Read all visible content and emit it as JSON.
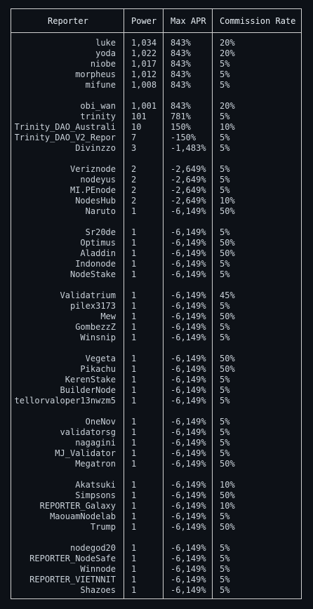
{
  "table": {
    "headers": {
      "reporter": "Reporter",
      "power": "Power",
      "max_apr": "Max APR",
      "commission": "Commission Rate"
    },
    "groups": [
      [
        {
          "reporter": "luke",
          "power": "1,034",
          "apr": "843%",
          "commission": "20%"
        },
        {
          "reporter": "yoda",
          "power": "1,022",
          "apr": "843%",
          "commission": "20%"
        },
        {
          "reporter": "niobe",
          "power": "1,017",
          "apr": "843%",
          "commission": "5%"
        },
        {
          "reporter": "morpheus",
          "power": "1,012",
          "apr": "843%",
          "commission": "5%"
        },
        {
          "reporter": "mifune",
          "power": "1,008",
          "apr": "843%",
          "commission": "5%"
        }
      ],
      [
        {
          "reporter": "obi_wan",
          "power": "1,001",
          "apr": "843%",
          "commission": "20%"
        },
        {
          "reporter": "trinity",
          "power": "101",
          "apr": "781%",
          "commission": "5%"
        },
        {
          "reporter": "Trinity_DAO_Australi",
          "power": "10",
          "apr": "150%",
          "commission": "10%"
        },
        {
          "reporter": "Trinity_DAO_V2_Repor",
          "power": "7",
          "apr": "-150%",
          "commission": "5%"
        },
        {
          "reporter": "Divinzzo",
          "power": "3",
          "apr": "-1,483%",
          "commission": "5%"
        }
      ],
      [
        {
          "reporter": "Veriznode",
          "power": "2",
          "apr": "-2,649%",
          "commission": "5%"
        },
        {
          "reporter": "nodeyus",
          "power": "2",
          "apr": "-2,649%",
          "commission": "5%"
        },
        {
          "reporter": "MI.PEnode",
          "power": "2",
          "apr": "-2,649%",
          "commission": "5%"
        },
        {
          "reporter": "NodesHub",
          "power": "2",
          "apr": "-2,649%",
          "commission": "10%"
        },
        {
          "reporter": "Naruto",
          "power": "1",
          "apr": "-6,149%",
          "commission": "50%"
        }
      ],
      [
        {
          "reporter": "Sr20de",
          "power": "1",
          "apr": "-6,149%",
          "commission": "5%"
        },
        {
          "reporter": "Optimus",
          "power": "1",
          "apr": "-6,149%",
          "commission": "50%"
        },
        {
          "reporter": "Aladdin",
          "power": "1",
          "apr": "-6,149%",
          "commission": "50%"
        },
        {
          "reporter": "Indonode",
          "power": "1",
          "apr": "-6,149%",
          "commission": "5%"
        },
        {
          "reporter": "NodeStake",
          "power": "1",
          "apr": "-6,149%",
          "commission": "5%"
        }
      ],
      [
        {
          "reporter": "Validatrium",
          "power": "1",
          "apr": "-6,149%",
          "commission": "45%"
        },
        {
          "reporter": "pilex3173",
          "power": "1",
          "apr": "-6,149%",
          "commission": "5%"
        },
        {
          "reporter": "Mew",
          "power": "1",
          "apr": "-6,149%",
          "commission": "50%"
        },
        {
          "reporter": "GombezzZ",
          "power": "1",
          "apr": "-6,149%",
          "commission": "5%"
        },
        {
          "reporter": "Winsnip",
          "power": "1",
          "apr": "-6,149%",
          "commission": "5%"
        }
      ],
      [
        {
          "reporter": "Vegeta",
          "power": "1",
          "apr": "-6,149%",
          "commission": "50%"
        },
        {
          "reporter": "Pikachu",
          "power": "1",
          "apr": "-6,149%",
          "commission": "50%"
        },
        {
          "reporter": "KerenStake",
          "power": "1",
          "apr": "-6,149%",
          "commission": "5%"
        },
        {
          "reporter": "BuilderNode",
          "power": "1",
          "apr": "-6,149%",
          "commission": "5%"
        },
        {
          "reporter": "tellorvaloper13nwzm5",
          "power": "1",
          "apr": "-6,149%",
          "commission": "5%"
        }
      ],
      [
        {
          "reporter": "OneNov",
          "power": "1",
          "apr": "-6,149%",
          "commission": "5%"
        },
        {
          "reporter": "validatorsg",
          "power": "1",
          "apr": "-6,149%",
          "commission": "5%"
        },
        {
          "reporter": "nagagini",
          "power": "1",
          "apr": "-6,149%",
          "commission": "5%"
        },
        {
          "reporter": "MJ_Validator",
          "power": "1",
          "apr": "-6,149%",
          "commission": "5%"
        },
        {
          "reporter": "Megatron",
          "power": "1",
          "apr": "-6,149%",
          "commission": "50%"
        }
      ],
      [
        {
          "reporter": "Akatsuki",
          "power": "1",
          "apr": "-6,149%",
          "commission": "10%"
        },
        {
          "reporter": "Simpsons",
          "power": "1",
          "apr": "-6,149%",
          "commission": "50%"
        },
        {
          "reporter": "REPORTER_Galaxy",
          "power": "1",
          "apr": "-6,149%",
          "commission": "10%"
        },
        {
          "reporter": "MaouamNodelab",
          "power": "1",
          "apr": "-6,149%",
          "commission": "5%"
        },
        {
          "reporter": "Trump",
          "power": "1",
          "apr": "-6,149%",
          "commission": "50%"
        }
      ],
      [
        {
          "reporter": "nodegod20",
          "power": "1",
          "apr": "-6,149%",
          "commission": "5%"
        },
        {
          "reporter": "REPORTER_NodeSafe",
          "power": "1",
          "apr": "-6,149%",
          "commission": "5%"
        },
        {
          "reporter": "Winnode",
          "power": "1",
          "apr": "-6,149%",
          "commission": "5%"
        },
        {
          "reporter": "REPORTER_VIETNNIT",
          "power": "1",
          "apr": "-6,149%",
          "commission": "5%"
        },
        {
          "reporter": "Shazoes",
          "power": "1",
          "apr": "-6,149%",
          "commission": "5%"
        }
      ]
    ]
  },
  "colors": {
    "background": "#0d1117",
    "text": "#c9d1d9",
    "border": "#d0d0d0"
  }
}
